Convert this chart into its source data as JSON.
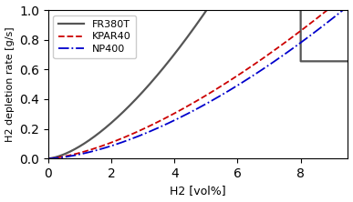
{
  "title": "",
  "xlabel": "H2 [vol%]",
  "ylabel": "H2 depletion rate [g/s]",
  "xlim": [
    0,
    9.5
  ],
  "ylim": [
    0,
    1.0
  ],
  "xticks": [
    0,
    2,
    4,
    6,
    8
  ],
  "yticks": [
    0.0,
    0.2,
    0.4,
    0.6,
    0.8,
    1.0
  ],
  "lines": [
    {
      "label": "FR380T",
      "color": "#555555",
      "linestyle": "-",
      "linewidth": 1.6,
      "type": "fr380t",
      "power": 1.55,
      "scale": 0.082,
      "breakpoint": 8.0,
      "cap": 0.655
    },
    {
      "label": "KPAR40",
      "color": "#cc0000",
      "linestyle": "--",
      "linewidth": 1.3,
      "type": "power",
      "power": 1.5,
      "scale": 0.038
    },
    {
      "label": "NP400",
      "color": "#0000cc",
      "linestyle": "-.",
      "linewidth": 1.3,
      "type": "power",
      "power": 1.6,
      "scale": 0.028
    }
  ],
  "legend_loc": "upper left",
  "legend_fontsize": 8,
  "figsize": [
    3.87,
    2.22
  ],
  "dpi": 100
}
